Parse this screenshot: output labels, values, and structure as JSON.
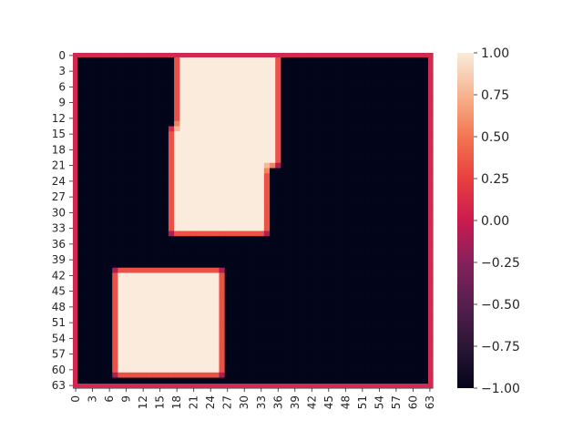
{
  "chart_data": {
    "type": "heatmap",
    "rows": 64,
    "cols": 64,
    "vmin": -1.0,
    "vmax": 1.0,
    "colormap": "rocket",
    "background_value": -1.0,
    "frame_color": "#d02a51",
    "x_tick_labels": [
      "0",
      "3",
      "6",
      "9",
      "12",
      "15",
      "18",
      "21",
      "24",
      "27",
      "30",
      "33",
      "36",
      "39",
      "42",
      "45",
      "48",
      "51",
      "54",
      "57",
      "60",
      "63"
    ],
    "y_tick_labels": [
      "0",
      "3",
      "6",
      "9",
      "12",
      "15",
      "18",
      "21",
      "24",
      "27",
      "30",
      "33",
      "36",
      "39",
      "42",
      "45",
      "48",
      "51",
      "54",
      "57",
      "60",
      "63"
    ],
    "colorbar_ticks": [
      "1.00",
      "0.75",
      "0.50",
      "0.25",
      "0.00",
      "−0.25",
      "−0.50",
      "−0.75",
      "−1.00"
    ],
    "colorbar_values": [
      1.0,
      0.75,
      0.5,
      0.25,
      0.0,
      -0.25,
      -0.5,
      -0.75,
      -1.0
    ],
    "regions": [
      {
        "value": 1.0,
        "rows": [
          0,
          14
        ],
        "cols": [
          18,
          36
        ]
      },
      {
        "value": 1.0,
        "rows": [
          14,
          21
        ],
        "cols": [
          17,
          36
        ]
      },
      {
        "value": 1.0,
        "rows": [
          21,
          34
        ],
        "cols": [
          17,
          34
        ]
      },
      {
        "value": 1.0,
        "rows": [
          41,
          61
        ],
        "cols": [
          7,
          26
        ]
      }
    ]
  }
}
